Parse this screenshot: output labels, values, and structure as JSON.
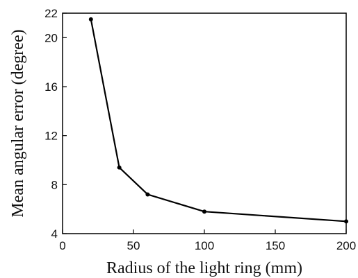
{
  "chart_data": {
    "type": "line",
    "title": "",
    "xlabel": "Radius of the light ring (mm)",
    "ylabel": "Mean angular error (degree)",
    "xlim": [
      0,
      200
    ],
    "ylim": [
      4,
      22
    ],
    "xticks": [
      0,
      50,
      100,
      150,
      200
    ],
    "yticks": [
      4,
      8,
      12,
      16,
      20,
      22
    ],
    "grid": false,
    "series": [
      {
        "x": [
          20,
          40,
          60,
          100,
          200
        ],
        "y": [
          21.5,
          9.4,
          7.2,
          5.8,
          5.0
        ]
      }
    ],
    "colors": {
      "line": "#000000",
      "axis": "#000000"
    }
  }
}
